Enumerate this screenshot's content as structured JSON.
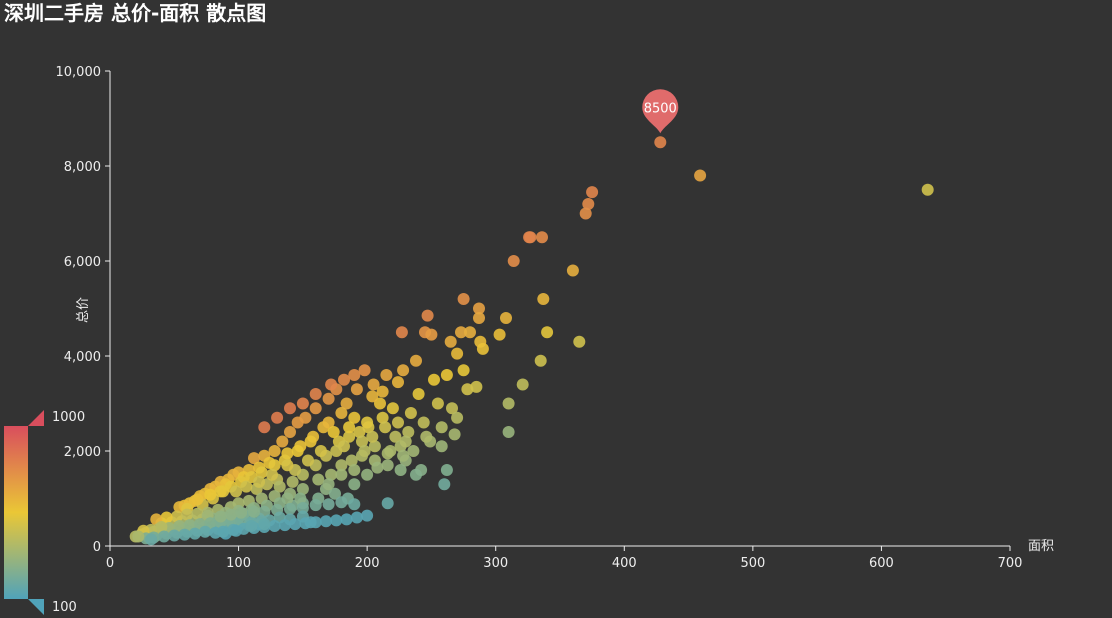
{
  "chart_data": {
    "type": "scatter",
    "title": "深圳二手房 总价-面积 散点图",
    "xlabel": "面积",
    "ylabel": "总价",
    "xlim": [
      0,
      700
    ],
    "ylim": [
      0,
      10000
    ],
    "x_ticks": [
      "0",
      "100",
      "200",
      "300",
      "400",
      "500",
      "600",
      "700"
    ],
    "y_ticks": [
      "0",
      "2,000",
      "4,000",
      "6,000",
      "8,000",
      "10,000"
    ],
    "grid": false,
    "visual_map": {
      "min": 100,
      "max": 1000,
      "min_label": "100",
      "max_label": "1000",
      "colors": [
        "#50a3ba",
        "#eac736",
        "#d94e5d"
      ],
      "position": "bottom-left"
    },
    "mark_point": {
      "label": "8500",
      "x": 428,
      "y": 8500,
      "color": "#e06b6b"
    },
    "points": [
      [
        428,
        8500
      ],
      [
        459,
        7800
      ],
      [
        636,
        7500
      ],
      [
        375,
        7450
      ],
      [
        372,
        7200
      ],
      [
        370,
        7000
      ],
      [
        327,
        6500
      ],
      [
        326,
        6500
      ],
      [
        336,
        6500
      ],
      [
        314,
        6000
      ],
      [
        360,
        5800
      ],
      [
        337,
        5200
      ],
      [
        275,
        5200
      ],
      [
        287,
        5000
      ],
      [
        308,
        4800
      ],
      [
        287,
        4800
      ],
      [
        247,
        4850
      ],
      [
        340,
        4500
      ],
      [
        273,
        4500
      ],
      [
        280,
        4500
      ],
      [
        245,
        4500
      ],
      [
        250,
        4450
      ],
      [
        227,
        4500
      ],
      [
        303,
        4450
      ],
      [
        365,
        4300
      ],
      [
        288,
        4300
      ],
      [
        265,
        4300
      ],
      [
        335,
        3900
      ],
      [
        290,
        4150
      ],
      [
        270,
        4050
      ],
      [
        321,
        3400
      ],
      [
        285,
        3350
      ],
      [
        310,
        3000
      ],
      [
        310,
        2400
      ],
      [
        262,
        1600
      ],
      [
        260,
        1300
      ],
      [
        216,
        900
      ],
      [
        228,
        3700
      ],
      [
        238,
        3900
      ],
      [
        252,
        3500
      ],
      [
        262,
        3600
      ],
      [
        275,
        3700
      ],
      [
        240,
        3200
      ],
      [
        255,
        3000
      ],
      [
        266,
        2900
      ],
      [
        278,
        3300
      ],
      [
        244,
        2600
      ],
      [
        232,
        2400
      ],
      [
        249,
        2200
      ],
      [
        258,
        2100
      ],
      [
        270,
        2700
      ],
      [
        236,
        2000
      ],
      [
        230,
        1800
      ],
      [
        242,
        1600
      ],
      [
        215,
        3600
      ],
      [
        205,
        3400
      ],
      [
        210,
        3000
      ],
      [
        198,
        3700
      ],
      [
        190,
        3600
      ],
      [
        220,
        2900
      ],
      [
        212,
        2700
      ],
      [
        201,
        2500
      ],
      [
        194,
        2400
      ],
      [
        186,
        2300
      ],
      [
        178,
        2200
      ],
      [
        222,
        2300
      ],
      [
        206,
        2100
      ],
      [
        196,
        1900
      ],
      [
        188,
        1800
      ],
      [
        180,
        1700
      ],
      [
        172,
        1500
      ],
      [
        190,
        1300
      ],
      [
        168,
        1200
      ],
      [
        175,
        1100
      ],
      [
        162,
        1000
      ],
      [
        185,
        1000
      ],
      [
        150,
        900
      ],
      [
        142,
        850
      ],
      [
        156,
        500
      ],
      [
        170,
        3100
      ],
      [
        176,
        3300
      ],
      [
        184,
        3000
      ],
      [
        160,
        2900
      ],
      [
        152,
        2700
      ],
      [
        146,
        2600
      ],
      [
        166,
        2500
      ],
      [
        158,
        2300
      ],
      [
        140,
        2400
      ],
      [
        134,
        2200
      ],
      [
        148,
        2100
      ],
      [
        128,
        2000
      ],
      [
        138,
        1950
      ],
      [
        120,
        1900
      ],
      [
        112,
        1850
      ],
      [
        124,
        1750
      ],
      [
        116,
        1650
      ],
      [
        108,
        1600
      ],
      [
        100,
        1550
      ],
      [
        96,
        1500
      ],
      [
        104,
        1450
      ],
      [
        92,
        1400
      ],
      [
        86,
        1350
      ],
      [
        90,
        1300
      ],
      [
        82,
        1250
      ],
      [
        78,
        1200
      ],
      [
        88,
        1150
      ],
      [
        74,
        1100
      ],
      [
        70,
        1050
      ],
      [
        80,
        1000
      ],
      [
        66,
        950
      ],
      [
        62,
        900
      ],
      [
        72,
        870
      ],
      [
        58,
        850
      ],
      [
        54,
        820
      ],
      [
        60,
        780
      ],
      [
        130,
        1400
      ],
      [
        122,
        1300
      ],
      [
        114,
        1200
      ],
      [
        132,
        1250
      ],
      [
        142,
        1350
      ],
      [
        150,
        1500
      ],
      [
        160,
        1700
      ],
      [
        168,
        1900
      ],
      [
        176,
        2000
      ],
      [
        182,
        2100
      ],
      [
        196,
        2200
      ],
      [
        204,
        2300
      ],
      [
        214,
        2500
      ],
      [
        224,
        2600
      ],
      [
        234,
        2800
      ],
      [
        200,
        2600
      ],
      [
        190,
        2700
      ],
      [
        180,
        2800
      ],
      [
        170,
        2600
      ],
      [
        136,
        1800
      ],
      [
        128,
        1700
      ],
      [
        118,
        1550
      ],
      [
        110,
        1450
      ],
      [
        102,
        1350
      ],
      [
        94,
        1250
      ],
      [
        86,
        1150
      ],
      [
        78,
        1080
      ],
      [
        68,
        980
      ],
      [
        144,
        1600
      ],
      [
        154,
        1800
      ],
      [
        164,
        2000
      ],
      [
        174,
        2400
      ],
      [
        186,
        2500
      ],
      [
        198,
        2000
      ],
      [
        206,
        1800
      ],
      [
        216,
        1700
      ],
      [
        226,
        1600
      ],
      [
        238,
        1500
      ],
      [
        226,
        2100
      ],
      [
        246,
        2300
      ],
      [
        258,
        2500
      ],
      [
        268,
        2350
      ],
      [
        216,
        1950
      ],
      [
        230,
        2200
      ],
      [
        120,
        2500
      ],
      [
        130,
        2700
      ],
      [
        140,
        2900
      ],
      [
        150,
        3000
      ],
      [
        160,
        3200
      ],
      [
        172,
        3400
      ],
      [
        182,
        3500
      ],
      [
        192,
        3300
      ],
      [
        204,
        3150
      ],
      [
        212,
        3250
      ],
      [
        224,
        3450
      ],
      [
        156,
        2200
      ],
      [
        146,
        2000
      ],
      [
        138,
        1700
      ],
      [
        126,
        1500
      ],
      [
        116,
        1350
      ],
      [
        106,
        1250
      ],
      [
        98,
        1150
      ],
      [
        140,
        1100
      ],
      [
        150,
        1200
      ],
      [
        162,
        1400
      ],
      [
        170,
        1300
      ],
      [
        180,
        1500
      ],
      [
        190,
        1600
      ],
      [
        200,
        1500
      ],
      [
        208,
        1650
      ],
      [
        218,
        2000
      ],
      [
        228,
        1900
      ],
      [
        100,
        900
      ],
      [
        108,
        950
      ],
      [
        118,
        1000
      ],
      [
        128,
        1050
      ],
      [
        138,
        1000
      ],
      [
        112,
        800
      ],
      [
        122,
        850
      ],
      [
        132,
        900
      ],
      [
        148,
        1000
      ],
      [
        94,
        820
      ],
      [
        84,
        760
      ],
      [
        76,
        700
      ],
      [
        90,
        700
      ],
      [
        100,
        740
      ],
      [
        110,
        760
      ],
      [
        120,
        720
      ],
      [
        130,
        760
      ],
      [
        140,
        780
      ],
      [
        150,
        800
      ],
      [
        160,
        860
      ],
      [
        170,
        880
      ],
      [
        180,
        920
      ],
      [
        190,
        880
      ],
      [
        104,
        680
      ],
      [
        96,
        640
      ],
      [
        88,
        600
      ],
      [
        80,
        580
      ],
      [
        72,
        560
      ],
      [
        64,
        540
      ],
      [
        56,
        520
      ],
      [
        48,
        500
      ],
      [
        40,
        480
      ],
      [
        52,
        620
      ],
      [
        44,
        600
      ],
      [
        36,
        560
      ],
      [
        60,
        660
      ],
      [
        68,
        680
      ],
      [
        76,
        640
      ],
      [
        84,
        520
      ],
      [
        92,
        560
      ],
      [
        100,
        600
      ],
      [
        108,
        620
      ],
      [
        116,
        580
      ],
      [
        124,
        540
      ],
      [
        132,
        600
      ],
      [
        140,
        560
      ],
      [
        150,
        620
      ],
      [
        98,
        480
      ],
      [
        90,
        440
      ],
      [
        82,
        420
      ],
      [
        74,
        400
      ],
      [
        66,
        380
      ],
      [
        58,
        360
      ],
      [
        50,
        340
      ],
      [
        42,
        320
      ],
      [
        34,
        300
      ],
      [
        28,
        280
      ],
      [
        24,
        240
      ],
      [
        20,
        200
      ],
      [
        30,
        180
      ],
      [
        36,
        220
      ],
      [
        44,
        260
      ],
      [
        52,
        280
      ],
      [
        60,
        300
      ],
      [
        68,
        320
      ],
      [
        76,
        340
      ],
      [
        84,
        360
      ],
      [
        92,
        380
      ],
      [
        100,
        420
      ],
      [
        108,
        440
      ],
      [
        116,
        460
      ],
      [
        46,
        380
      ],
      [
        38,
        360
      ],
      [
        32,
        340
      ],
      [
        26,
        320
      ],
      [
        40,
        400
      ],
      [
        54,
        420
      ],
      [
        62,
        440
      ],
      [
        70,
        460
      ],
      [
        78,
        480
      ],
      [
        86,
        500
      ],
      [
        94,
        520
      ],
      [
        102,
        540
      ],
      [
        110,
        500
      ],
      [
        118,
        520
      ],
      [
        74,
        300
      ],
      [
        82,
        280
      ],
      [
        90,
        260
      ],
      [
        66,
        260
      ],
      [
        58,
        240
      ],
      [
        50,
        220
      ],
      [
        42,
        200
      ],
      [
        34,
        180
      ],
      [
        28,
        160
      ],
      [
        32,
        140
      ],
      [
        22,
        200
      ],
      [
        96,
        340
      ],
      [
        104,
        360
      ],
      [
        112,
        380
      ],
      [
        120,
        400
      ],
      [
        128,
        420
      ],
      [
        136,
        440
      ],
      [
        144,
        460
      ],
      [
        152,
        480
      ],
      [
        160,
        500
      ],
      [
        168,
        520
      ],
      [
        176,
        540
      ],
      [
        184,
        560
      ],
      [
        192,
        600
      ],
      [
        200,
        640
      ],
      [
        98,
        320
      ],
      [
        88,
        300
      ],
      [
        110,
        420
      ],
      [
        120,
        460
      ],
      [
        86,
        620
      ],
      [
        94,
        660
      ],
      [
        102,
        700
      ],
      [
        112,
        720
      ]
    ]
  }
}
